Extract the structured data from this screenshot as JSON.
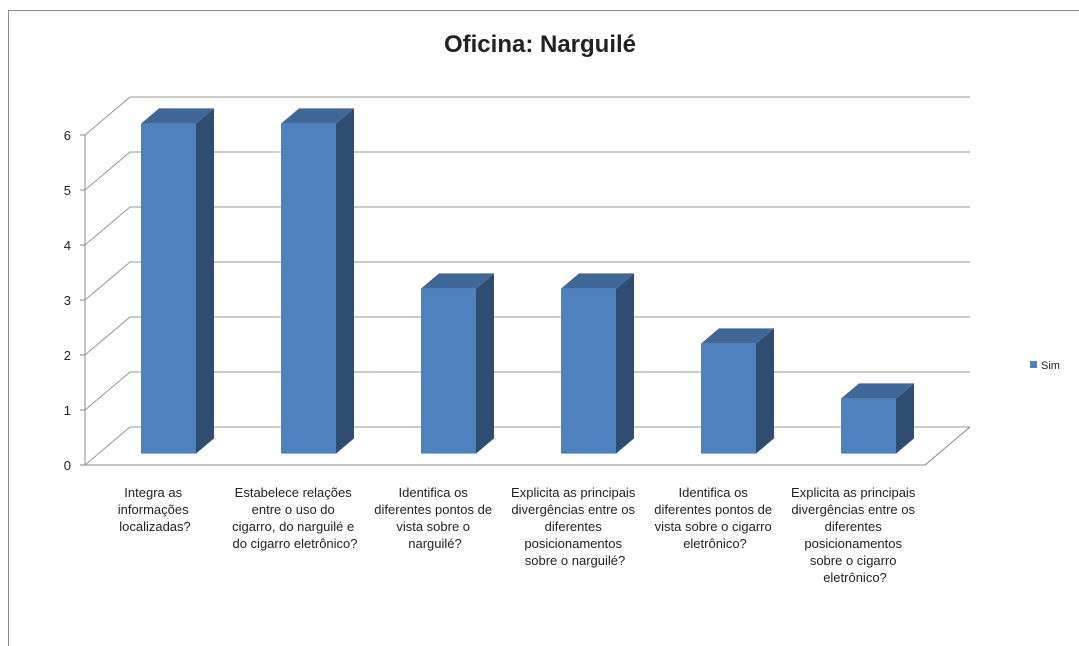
{
  "chart_data": {
    "type": "bar3d",
    "title": "Oficina: Narguilé",
    "categories": [
      "Integra as informações localizadas?",
      "Estabelece relações entre o uso do cigarro, do narguilé e do cigarro eletrônico?",
      "Identifica os diferentes pontos de vista sobre o narguilé?",
      "Explicita as principais divergências entre os diferentes posicionamentos sobre o narguilé?",
      "Identifica os diferentes pontos de vista sobre o cigarro eletrônico?",
      "Explicita as principais divergências entre os diferentes posicionamentos sobre o cigarro eletrônico?"
    ],
    "series": [
      {
        "name": "Sim",
        "color": "#4f81bd",
        "values": [
          6,
          6,
          3,
          3,
          2,
          1
        ]
      }
    ],
    "ylim": [
      0,
      6
    ],
    "yticks": [
      0,
      1,
      2,
      3,
      4,
      5,
      6
    ],
    "grid": true,
    "legend": "right"
  }
}
